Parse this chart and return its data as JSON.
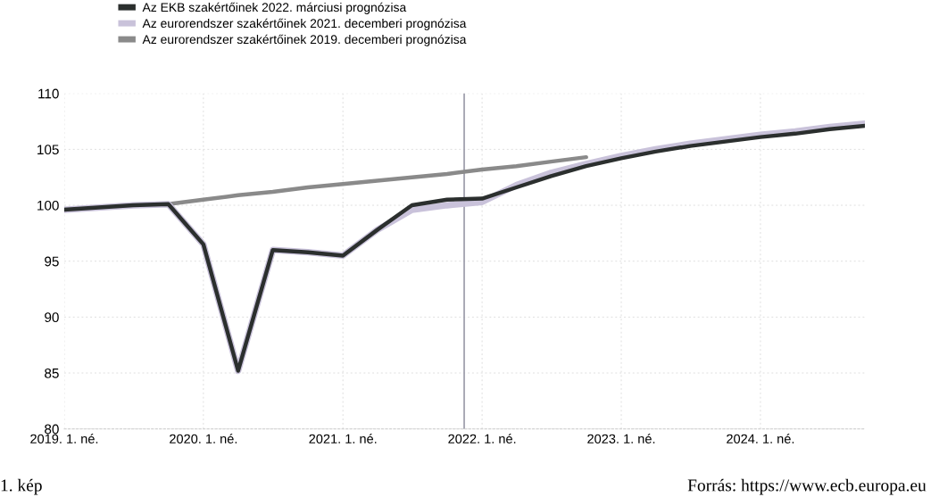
{
  "chart_data": {
    "type": "line",
    "x": [
      "2019-01",
      "2019-04",
      "2019-07",
      "2019-10",
      "2020-01",
      "2020-04",
      "2020-07",
      "2020-10",
      "2021-01",
      "2021-04",
      "2021-07",
      "2021-10",
      "2022-01",
      "2022-04",
      "2022-07",
      "2022-10",
      "2023-01",
      "2023-04",
      "2023-07",
      "2023-10",
      "2024-01",
      "2024-04",
      "2024-07",
      "2024-10"
    ],
    "xlim": [
      "2019-01",
      "2024-10"
    ],
    "xticks": [
      {
        "value": "2019-01",
        "label": "2019. 1. né."
      },
      {
        "value": "2020-01",
        "label": "2020. 1. né."
      },
      {
        "value": "2021-01",
        "label": "2021. 1. né."
      },
      {
        "value": "2022-01",
        "label": "2022. 1. né."
      },
      {
        "value": "2023-01",
        "label": "2023. 1. né."
      },
      {
        "value": "2024-01",
        "label": "2024. 1. né."
      }
    ],
    "ylim": [
      80,
      110
    ],
    "yticks": [
      80,
      85,
      90,
      95,
      100,
      105,
      110
    ],
    "series": [
      {
        "name": "Az EKB szakértőinek 2022. márciusi prognózisa",
        "color": "#2b2f2e",
        "values": [
          99.6,
          99.8,
          100.0,
          100.1,
          96.5,
          85.2,
          96.0,
          95.8,
          95.5,
          97.8,
          100.0,
          100.5,
          100.6,
          101.6,
          102.6,
          103.5,
          104.2,
          104.8,
          105.3,
          105.7,
          106.1,
          106.4,
          106.8,
          107.1
        ]
      },
      {
        "name": "Az eurorendszer szakértőinek 2021. decemberi prognózisa",
        "color": "#c9c2da",
        "values": [
          99.6,
          99.8,
          100.0,
          100.1,
          96.5,
          85.2,
          96.0,
          95.8,
          95.5,
          97.8,
          99.6,
          100.0,
          100.3,
          101.8,
          102.9,
          103.7,
          104.4,
          105.0,
          105.5,
          105.9,
          106.3,
          106.6,
          107.0,
          107.3
        ]
      },
      {
        "name": "Az eurorendszer szakértőinek 2019. decemberi prognózisa",
        "color": "#8a8a8a",
        "values": [
          99.6,
          99.8,
          100.0,
          100.1,
          100.5,
          100.9,
          101.2,
          101.6,
          101.9,
          102.2,
          102.5,
          102.8,
          103.2,
          103.5,
          103.9,
          104.3,
          null,
          null,
          null,
          null,
          null,
          null,
          null,
          null
        ]
      }
    ],
    "ref_lines": [
      {
        "axis": "x",
        "value": "2021-11-15",
        "color": "#9a9aa8"
      }
    ],
    "grid": true,
    "legend": "top left",
    "marker": "none",
    "line_style": "solid",
    "annotations": [
      "1. kép",
      "Forrás: https://www.ecb.europa.eu"
    ]
  }
}
